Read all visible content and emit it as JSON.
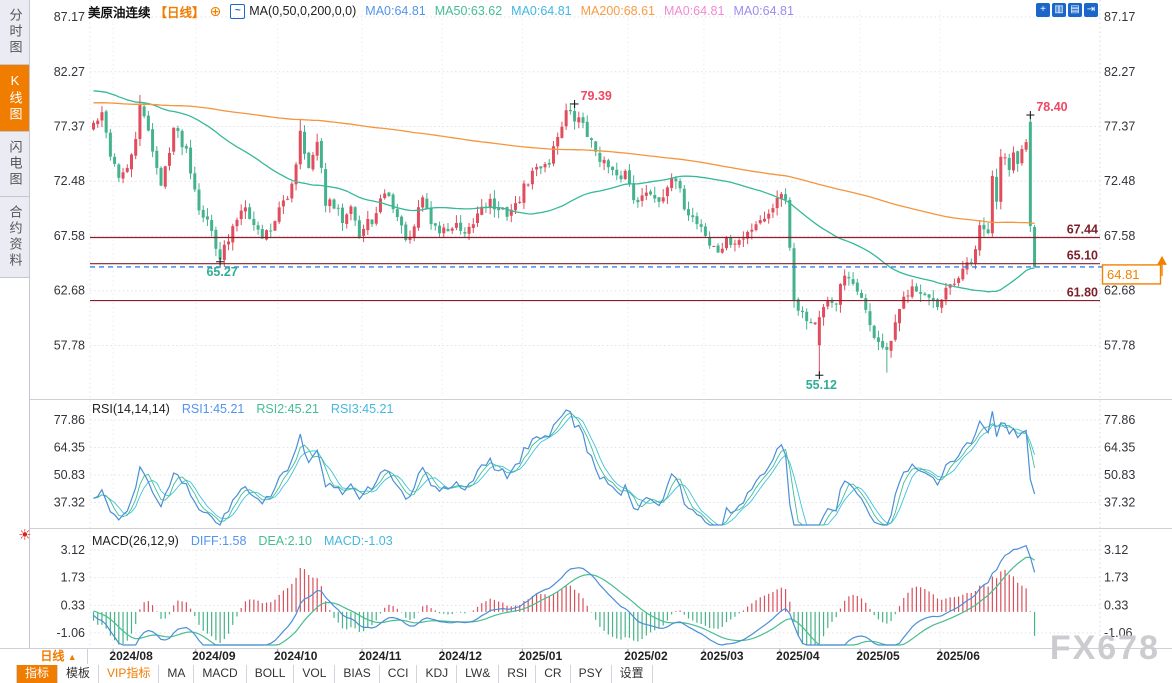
{
  "watermark": "FX678",
  "icons": {
    "compare_plus": "⊕",
    "ma_dialog": "~",
    "crosshair": "+",
    "axis_a": "▥",
    "axis_b": "▤",
    "exit": "⇥",
    "dropdown_up": "▲",
    "beacon": "☀"
  },
  "sidebar": {
    "items": [
      {
        "label": "分时图",
        "active": false
      },
      {
        "label": "K线图",
        "active": true
      },
      {
        "label": "闪电图",
        "active": false
      },
      {
        "label": "合约资料",
        "active": false
      }
    ]
  },
  "header": {
    "symbol": "美原油连续",
    "period": "【日线】",
    "ma_formula": "MA(0,50,0,200,0,0)",
    "ma_values": [
      {
        "label": "MA0:64.81",
        "color": "blue"
      },
      {
        "label": "MA50:63.62",
        "color": "green"
      },
      {
        "label": "MA0:64.81",
        "color": "cyan"
      },
      {
        "label": "MA200:68.61",
        "color": "orange"
      },
      {
        "label": "MA0:64.81",
        "color": "pink"
      },
      {
        "label": "MA0:64.81",
        "color": "purple"
      }
    ]
  },
  "toolbar": {
    "period_label": "日线",
    "buttons": [
      {
        "label": "指标",
        "active": true
      },
      {
        "label": "模板"
      },
      {
        "label": "VIP指标",
        "vip": true
      },
      {
        "label": "MA"
      },
      {
        "label": "MACD"
      },
      {
        "label": "BOLL"
      },
      {
        "label": "VOL"
      },
      {
        "label": "BIAS"
      },
      {
        "label": "CCI"
      },
      {
        "label": "KDJ"
      },
      {
        "label": "LW&"
      },
      {
        "label": "RSI"
      },
      {
        "label": "CR"
      },
      {
        "label": "PSY"
      },
      {
        "label": "设置"
      }
    ]
  },
  "colors": {
    "up": "#e14d5d",
    "down": "#45b28e",
    "ma50": "#35b998",
    "ma200": "#f5953d",
    "level_line": "#8a1f2a",
    "current_dash": "#2f86e8",
    "accent_orange": "#f08200",
    "annotation_high": "#ef4862",
    "annotation_low": "#2fae94",
    "rsi_line": "#4a8fd8",
    "rsi2_line": "#45bd92",
    "rsi3_line": "#3cc3de",
    "macd_diff": "#4a8fd8",
    "macd_dea": "#48bd90",
    "hist_pos": "#d94f5c",
    "hist_neg": "#47b389",
    "grid": "#e2e2ea",
    "tick_text": "#33333a",
    "icon_blue": "#1a66c9"
  },
  "chart_data": {
    "type": "candlestick",
    "instrument": "美原油连续",
    "period": "日线",
    "x_labels": [
      "2024/08",
      "2024/09",
      "2024/10",
      "2024/11",
      "2024/12",
      "2025/01",
      "2025/02",
      "2025/03",
      "2025/04",
      "2025/05",
      "2025/06"
    ],
    "month_indices": [
      5,
      24.6,
      44,
      64,
      83,
      102,
      127,
      145,
      163,
      182,
      201
    ],
    "n": 224,
    "price_ticks": [
      "87.17",
      "82.27",
      "77.37",
      "72.48",
      "67.58",
      "62.68",
      "57.78"
    ],
    "levels": [
      {
        "value": 67.44,
        "label": "67.44"
      },
      {
        "value": 65.1,
        "label": "65.10"
      },
      {
        "value": 61.8,
        "label": "61.80"
      }
    ],
    "current_price": {
      "value": 64.81,
      "label": "64.81"
    },
    "annotations": [
      {
        "index": 114,
        "type": "high",
        "value": 79.39,
        "label": "79.39"
      },
      {
        "index": 222,
        "type": "high",
        "value": 78.4,
        "label": "78.40"
      },
      {
        "index": 30,
        "type": "low",
        "value": 65.27,
        "label": "65.27"
      },
      {
        "index": 172,
        "type": "low",
        "value": 55.12,
        "label": "55.12"
      }
    ],
    "close_anchors": [
      [
        0,
        77.6
      ],
      [
        2,
        78.3
      ],
      [
        4,
        75.0
      ],
      [
        6,
        73.0
      ],
      [
        8,
        73.3
      ],
      [
        10,
        76.5
      ],
      [
        11,
        78.9
      ],
      [
        13,
        77.2
      ],
      [
        16,
        71.9
      ],
      [
        19,
        77.3
      ],
      [
        22,
        75.3
      ],
      [
        25,
        70.3
      ],
      [
        28,
        68.0
      ],
      [
        30,
        65.8
      ],
      [
        32,
        67.1
      ],
      [
        34,
        69.2
      ],
      [
        36,
        70.6
      ],
      [
        38,
        68.5
      ],
      [
        40,
        67.6
      ],
      [
        42,
        68.3
      ],
      [
        44,
        69.9
      ],
      [
        46,
        70.9
      ],
      [
        48,
        74.2
      ],
      [
        49,
        77.2
      ],
      [
        51,
        73.5
      ],
      [
        53,
        75.8
      ],
      [
        55,
        70.7
      ],
      [
        57,
        70.1
      ],
      [
        59,
        69.1
      ],
      [
        61,
        70.7
      ],
      [
        63,
        67.5
      ],
      [
        65,
        68.7
      ],
      [
        67,
        69.4
      ],
      [
        69,
        71.6
      ],
      [
        71,
        70.3
      ],
      [
        73,
        68.2
      ],
      [
        75,
        67.0
      ],
      [
        78,
        71.1
      ],
      [
        80,
        68.8
      ],
      [
        82,
        68.0
      ],
      [
        84,
        68.2
      ],
      [
        86,
        68.4
      ],
      [
        88,
        67.3
      ],
      [
        90,
        68.7
      ],
      [
        92,
        70.4
      ],
      [
        94,
        70.7
      ],
      [
        96,
        69.6
      ],
      [
        98,
        69.7
      ],
      [
        100,
        70.2
      ],
      [
        102,
        71.8
      ],
      [
        104,
        73.2
      ],
      [
        106,
        73.9
      ],
      [
        108,
        74.3
      ],
      [
        110,
        76.6
      ],
      [
        112,
        78.7
      ],
      [
        114,
        78.0
      ],
      [
        116,
        77.8
      ],
      [
        118,
        75.8
      ],
      [
        120,
        74.7
      ],
      [
        122,
        73.6
      ],
      [
        124,
        72.6
      ],
      [
        126,
        73.3
      ],
      [
        128,
        71.1
      ],
      [
        130,
        71.0
      ],
      [
        132,
        71.5
      ],
      [
        134,
        70.8
      ],
      [
        136,
        72.2
      ],
      [
        138,
        72.4
      ],
      [
        140,
        70.3
      ],
      [
        142,
        69.2
      ],
      [
        144,
        68.5
      ],
      [
        146,
        66.8
      ],
      [
        148,
        66.2
      ],
      [
        150,
        67.0
      ],
      [
        152,
        66.9
      ],
      [
        154,
        67.3
      ],
      [
        156,
        68.4
      ],
      [
        158,
        69.2
      ],
      [
        160,
        69.4
      ],
      [
        162,
        71.3
      ],
      [
        164,
        71.0
      ],
      [
        165,
        66.9
      ],
      [
        166,
        62.0
      ],
      [
        168,
        60.7
      ],
      [
        170,
        59.8
      ],
      [
        172,
        60.1
      ],
      [
        174,
        61.5
      ],
      [
        176,
        61.8
      ],
      [
        178,
        64.0
      ],
      [
        180,
        62.9
      ],
      [
        182,
        62.4
      ],
      [
        184,
        59.3
      ],
      [
        186,
        58.2
      ],
      [
        188,
        56.9
      ],
      [
        190,
        59.5
      ],
      [
        192,
        61.9
      ],
      [
        194,
        63.5
      ],
      [
        196,
        62.4
      ],
      [
        198,
        61.8
      ],
      [
        200,
        60.9
      ],
      [
        202,
        62.6
      ],
      [
        204,
        63.2
      ],
      [
        206,
        64.7
      ],
      [
        208,
        65.0
      ],
      [
        210,
        68.1
      ],
      [
        212,
        68.0
      ],
      [
        213,
        72.6
      ],
      [
        214,
        71.0
      ],
      [
        215,
        74.8
      ],
      [
        216,
        75.1
      ],
      [
        217,
        73.9
      ],
      [
        218,
        74.9
      ],
      [
        219,
        73.8
      ],
      [
        220,
        74.9
      ],
      [
        221,
        75.6
      ],
      [
        222,
        68.5
      ],
      [
        223,
        64.81
      ]
    ],
    "forced": {
      "open": {
        "172": 57.8,
        "222": 77.8
      },
      "high": {
        "11": 80.2,
        "49": 78.0,
        "114": 79.39,
        "222": 78.4
      },
      "low": {
        "30": 65.27,
        "172": 55.12,
        "188": 55.35
      },
      "close": {
        "223": 64.81
      }
    },
    "rsi_panel": {
      "formula": "RSI(14,14,14)",
      "values": [
        {
          "label": "RSI1:45.21"
        },
        {
          "label": "RSI2:45.21"
        },
        {
          "label": "RSI3:45.21"
        }
      ],
      "ticks": [
        "77.86",
        "64.35",
        "50.83",
        "37.32"
      ]
    },
    "macd_panel": {
      "formula": "MACD(26,12,9)",
      "values": [
        {
          "label": "DIFF:1.58"
        },
        {
          "label": "DEA:2.10"
        },
        {
          "label": "MACD:-1.03"
        }
      ],
      "ticks": [
        "3.12",
        "1.73",
        "0.33",
        "-1.06"
      ]
    }
  }
}
